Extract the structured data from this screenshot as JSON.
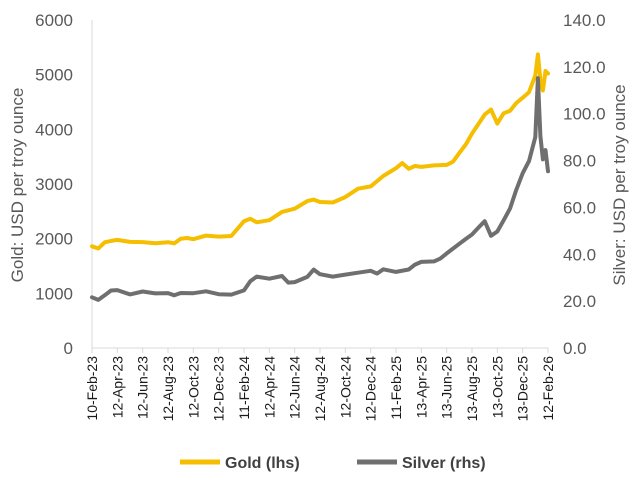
{
  "chart_data": {
    "type": "line",
    "title": "",
    "ylabel_left": "Gold: USD per troy ounce",
    "ylabel_right": "Silver: USD per troy ounce",
    "ylim_left": [
      0,
      6000
    ],
    "ylim_right": [
      0,
      140
    ],
    "yticks_left": [
      "0",
      "1000",
      "2000",
      "3000",
      "4000",
      "5000",
      "6000"
    ],
    "yticks_right": [
      "0.0",
      "20.0",
      "40.0",
      "60.0",
      "80.0",
      "100.0",
      "120.0",
      "140.0"
    ],
    "x_labels": [
      "10-Feb-23",
      "12-Apr-23",
      "12-Jun-23",
      "12-Aug-23",
      "12-Oct-23",
      "12-Dec-23",
      "11-Feb-24",
      "12-Apr-24",
      "12-Jun-24",
      "12-Aug-24",
      "12-Oct-24",
      "12-Dec-24",
      "11-Feb-25",
      "13-Apr-25",
      "13-Jun-25",
      "13-Aug-25",
      "13-Oct-25",
      "13-Dec-25",
      "12-Feb-26"
    ],
    "x_start": 0,
    "x_end": 36,
    "grid": false,
    "legend_position": "bottom",
    "series": [
      {
        "name": "Gold (lhs)",
        "axis": "left",
        "color": "#F5BE00",
        "x": [
          0,
          0.5,
          1,
          1.5,
          2,
          3,
          4,
          5,
          6,
          6.5,
          7,
          7.5,
          8,
          9,
          10,
          11,
          12,
          12.5,
          13,
          14,
          14.5,
          15,
          16,
          17,
          17.5,
          18,
          19,
          20,
          21,
          22,
          23,
          24,
          24.5,
          25,
          25.5,
          26,
          27,
          28,
          28.5,
          29,
          29.5,
          30,
          31,
          31.5,
          32,
          32.5,
          33,
          33.5,
          34,
          34.5,
          35,
          35.2,
          35.4,
          35.6,
          35.8,
          36
        ],
        "values": [
          1860,
          1830,
          1950,
          1980,
          2000,
          1960,
          1950,
          1920,
          1930,
          1900,
          1980,
          1990,
          1970,
          2040,
          2030,
          2050,
          2330,
          2380,
          2320,
          2360,
          2430,
          2500,
          2550,
          2680,
          2700,
          2650,
          2640,
          2740,
          2900,
          2950,
          3150,
          3300,
          3400,
          3300,
          3350,
          3330,
          3350,
          3350,
          3400,
          3550,
          3700,
          3900,
          4250,
          4350,
          4100,
          4300,
          4350,
          4500,
          4600,
          4700,
          5000,
          5380,
          4900,
          4700,
          5050,
          5000
        ]
      },
      {
        "name": "Silver (rhs)",
        "axis": "right",
        "color": "#6F6F6F",
        "x": [
          0,
          0.5,
          1,
          1.5,
          2,
          3,
          4,
          5,
          6,
          6.5,
          7,
          8,
          9,
          10,
          11,
          12,
          12.5,
          13,
          14,
          15,
          15.5,
          16,
          17,
          17.5,
          18,
          19,
          20,
          21,
          22,
          22.5,
          23,
          24,
          25,
          25.5,
          26,
          27,
          27.5,
          28,
          29,
          29.5,
          30,
          30.5,
          31,
          31.5,
          32,
          32.5,
          33,
          33.5,
          34,
          34.5,
          35,
          35.2,
          35.4,
          35.6,
          35.8,
          36
        ],
        "values": [
          22,
          21,
          23,
          25,
          25,
          23,
          24,
          23,
          23,
          22,
          23,
          23,
          24,
          23,
          23,
          25,
          29,
          31,
          30,
          31,
          28,
          28,
          30,
          33,
          31,
          30,
          31,
          32,
          33,
          32,
          34,
          33,
          34,
          36,
          37,
          37,
          38,
          40,
          44,
          46,
          48,
          51,
          54,
          48,
          50,
          55,
          60,
          68,
          75,
          80,
          90,
          115,
          90,
          80,
          84,
          75
        ]
      }
    ]
  }
}
